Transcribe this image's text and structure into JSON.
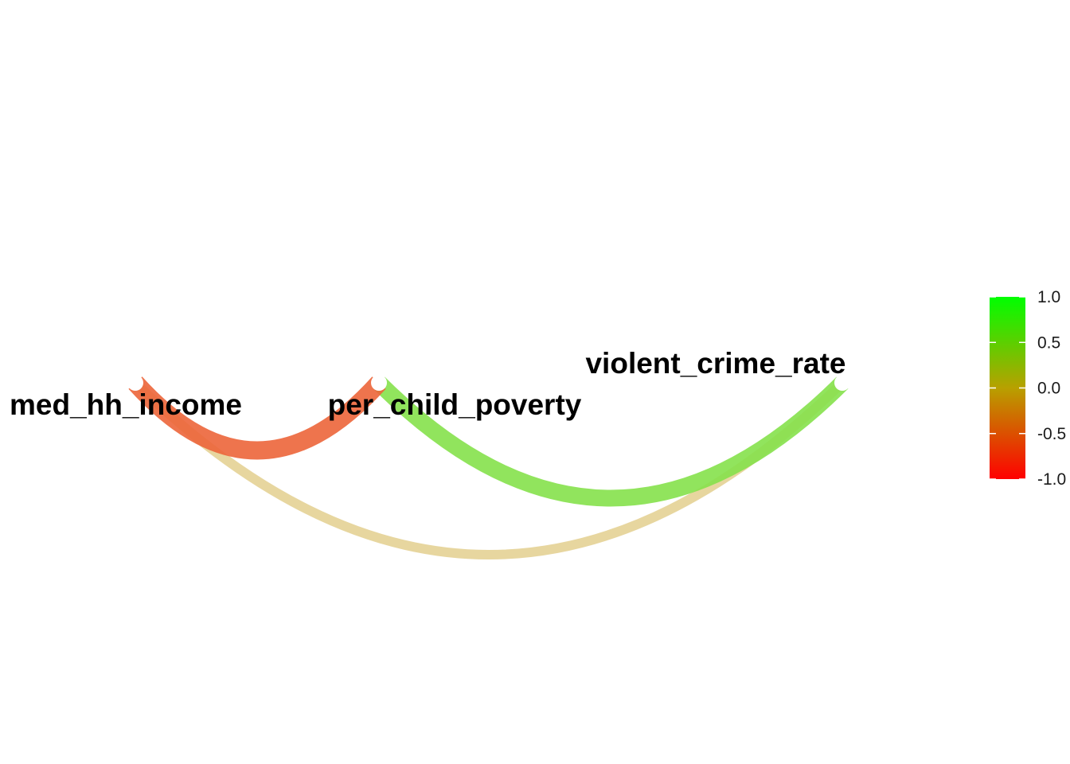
{
  "chart_data": {
    "type": "correlation-network",
    "nodes": [
      {
        "id": "med_hh_income",
        "label": "med_hh_income"
      },
      {
        "id": "per_child_poverty",
        "label": "per_child_poverty"
      },
      {
        "id": "violent_crime_rate",
        "label": "violent_crime_rate"
      }
    ],
    "edges": [
      {
        "from": "med_hh_income",
        "to": "per_child_poverty",
        "correlation": -0.65
      },
      {
        "from": "per_child_poverty",
        "to": "violent_crime_rate",
        "correlation": 0.55
      },
      {
        "from": "med_hh_income",
        "to": "violent_crime_rate",
        "correlation": -0.1
      }
    ],
    "legend": {
      "colors": {
        "low": "#ff0000",
        "mid": "#b8a000",
        "high": "#00ff00"
      },
      "range": [
        -1.0,
        1.0
      ],
      "tick_values": [
        1.0,
        0.5,
        0.0,
        -0.5,
        -1.0
      ],
      "tick_labels": [
        "1.0",
        "0.5",
        "0.0",
        "-0.5",
        "-1.0"
      ],
      "placement": "right"
    }
  }
}
